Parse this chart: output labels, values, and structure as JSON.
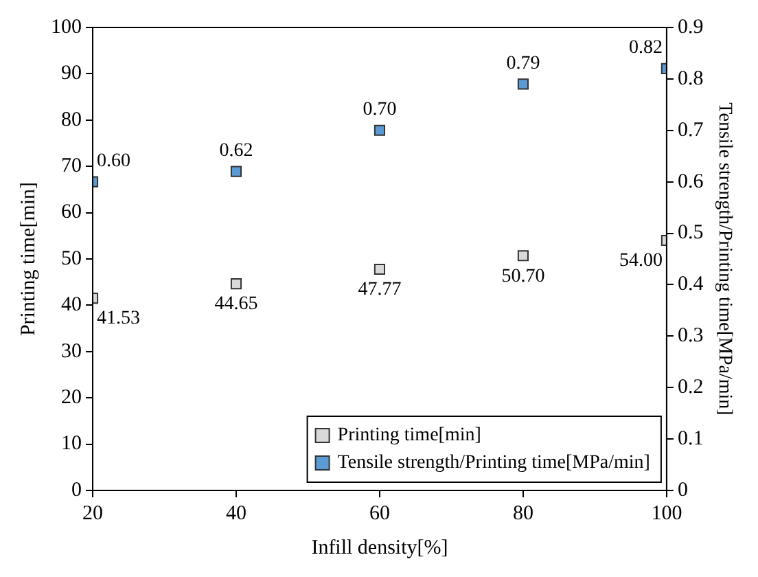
{
  "chart_data": {
    "type": "scatter",
    "xlabel": "Infill density[%]",
    "ylabel": "Printing time[min]",
    "y2label": "Tensile strength/Printing time[MPa/min]",
    "x": [
      20,
      40,
      60,
      80,
      100
    ],
    "xlim": [
      20,
      100
    ],
    "xticks": [
      20,
      40,
      60,
      80,
      100
    ],
    "ylim": [
      0,
      100
    ],
    "yticks": [
      0,
      10,
      20,
      30,
      40,
      50,
      60,
      70,
      80,
      90,
      100
    ],
    "y2lim": [
      0,
      0.9
    ],
    "y2ticks": [
      0,
      0.1,
      0.2,
      0.3,
      0.4,
      0.5,
      0.6,
      0.7,
      0.8,
      0.9
    ],
    "series": [
      {
        "name": "Printing time[min]",
        "color": "#d9d9d9",
        "values": [
          41.53,
          44.65,
          47.77,
          50.7,
          54.0
        ],
        "value_labels": [
          "41.53",
          "44.65",
          "47.77",
          "50.70",
          "54.00"
        ]
      },
      {
        "name": "Tensile strength/Printing time[MPa/min]",
        "color": "#5b9bd5",
        "axis": "y2",
        "values": [
          0.6,
          0.62,
          0.7,
          0.79,
          0.82
        ],
        "value_labels": [
          "0.60",
          "0.62",
          "0.70",
          "0.79",
          "0.82"
        ]
      }
    ],
    "marker": "square",
    "grid": false,
    "legend": "bottom right"
  }
}
